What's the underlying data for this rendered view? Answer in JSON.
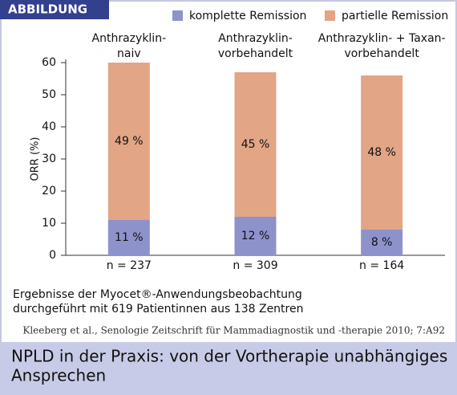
{
  "badge": "ABBILDUNG",
  "chart_data": {
    "type": "stacked_bar",
    "categories": [
      "Anthrazyklin-\nnaiv",
      "Anthrazyklin-\nvorbehandelt",
      "Anthrazyklin- + Taxan-\nvorbehandelt"
    ],
    "sample_sizes": [
      "n = 237",
      "n = 309",
      "n = 164"
    ],
    "series": [
      {
        "name": "komplette Remission",
        "color": "#8e92cb",
        "values": [
          11,
          12,
          8
        ],
        "value_labels": [
          "11 %",
          "12 %",
          "8 %"
        ]
      },
      {
        "name": "partielle Remission",
        "color": "#e2a585",
        "values": [
          49,
          45,
          48
        ],
        "value_labels": [
          "49 %",
          "45 %",
          "48 %"
        ]
      }
    ],
    "ylabel": "ORR (%)",
    "ylim": [
      0,
      60
    ],
    "yticks": [
      0,
      10,
      20,
      30,
      40,
      50,
      60
    ],
    "legend": "top-right"
  },
  "note": [
    "Ergebnisse der Myocet®-Anwendungsbeobachtung",
    "durchgeführt mit 619 Patientinnen aus 138 Zentren"
  ],
  "citation": "Kleeberg et al., Senologie Zeitschrift für Mammadiagnostik und -therapie 2010; 7:A92",
  "caption": [
    "NPLD in der Praxis: von der Vortherapie unabhängiges",
    "Ansprechen"
  ]
}
